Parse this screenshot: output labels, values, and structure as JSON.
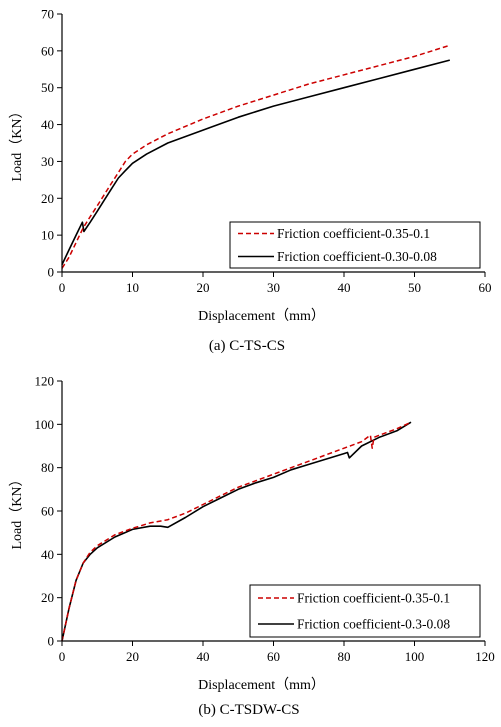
{
  "colors": {
    "series_dashed": "#cc0000",
    "series_solid": "#000000"
  },
  "chart_data": [
    {
      "type": "line",
      "caption": "(a) C-TS-CS",
      "xlabel": "Displacement（mm）",
      "ylabel": "Load（KN）",
      "xlim": [
        0,
        60
      ],
      "ylim": [
        0,
        70
      ],
      "xticks": [
        0,
        10,
        20,
        30,
        40,
        50,
        60
      ],
      "yticks": [
        0,
        10,
        20,
        30,
        40,
        50,
        60,
        70
      ],
      "grid": false,
      "legend_position": "bottom-right",
      "series": [
        {
          "name": "Friction coefficient-0.35-0.1",
          "style": "dashed",
          "color": "#cc0000",
          "x": [
            0,
            1,
            2,
            3,
            4,
            5,
            6,
            7,
            8,
            9,
            10,
            12,
            15,
            20,
            25,
            30,
            35,
            40,
            45,
            50,
            55
          ],
          "y": [
            1,
            4,
            8,
            12,
            15,
            18,
            21,
            24,
            27,
            30,
            32,
            34.5,
            37.5,
            41.5,
            45,
            48,
            51,
            53.5,
            56,
            58.5,
            61.5
          ]
        },
        {
          "name": "Friction coefficient-0.30-0.08",
          "style": "solid",
          "color": "#000000",
          "x": [
            0,
            1,
            2,
            2.9,
            3.1,
            4,
            5,
            6,
            7,
            8,
            9,
            10,
            12,
            15,
            20,
            25,
            30,
            35,
            40,
            45,
            50,
            55
          ],
          "y": [
            2,
            6,
            10,
            13.5,
            11,
            13.5,
            16.5,
            19.5,
            22.5,
            25.5,
            27.5,
            29.5,
            32,
            35,
            38.5,
            42,
            45,
            47.5,
            50,
            52.5,
            55,
            57.5
          ]
        }
      ]
    },
    {
      "type": "line",
      "caption": "(b) C-TSDW-CS",
      "xlabel": "Displacement（mm）",
      "ylabel": "Load（KN）",
      "xlim": [
        0,
        120
      ],
      "ylim": [
        0,
        120
      ],
      "xticks": [
        0,
        20,
        40,
        60,
        80,
        100,
        120
      ],
      "yticks": [
        0,
        20,
        40,
        60,
        80,
        100,
        120
      ],
      "grid": false,
      "legend_position": "bottom-right",
      "series": [
        {
          "name": "Friction coefficient-0.35-0.1",
          "style": "dashed",
          "color": "#cc0000",
          "x": [
            0,
            2,
            4,
            6,
            8,
            10,
            15,
            20,
            25,
            30,
            35,
            40,
            45,
            50,
            55,
            60,
            65,
            70,
            75,
            80,
            85,
            87.5,
            88,
            88.5,
            90,
            95,
            99
          ],
          "y": [
            0,
            15,
            28,
            36,
            41,
            44,
            49,
            52,
            54.5,
            56,
            59,
            63,
            67,
            71,
            74,
            77,
            80,
            83,
            86,
            89,
            92,
            95,
            89,
            94,
            95,
            98,
            101
          ]
        },
        {
          "name": "Friction coefficient-0.3-0.08",
          "style": "solid",
          "color": "#000000",
          "x": [
            0,
            2,
            4,
            6,
            8,
            10,
            15,
            20,
            25,
            28,
            30,
            35,
            40,
            45,
            50,
            55,
            60,
            65,
            70,
            75,
            80,
            81,
            81.5,
            85,
            90,
            95,
            99
          ],
          "y": [
            0,
            15,
            28,
            36,
            40,
            43,
            48,
            51.5,
            53,
            53,
            52.5,
            57,
            62,
            66,
            70,
            73,
            75.5,
            79,
            81.5,
            84,
            86.5,
            87,
            84.5,
            90,
            94,
            97,
            101
          ]
        }
      ]
    }
  ]
}
